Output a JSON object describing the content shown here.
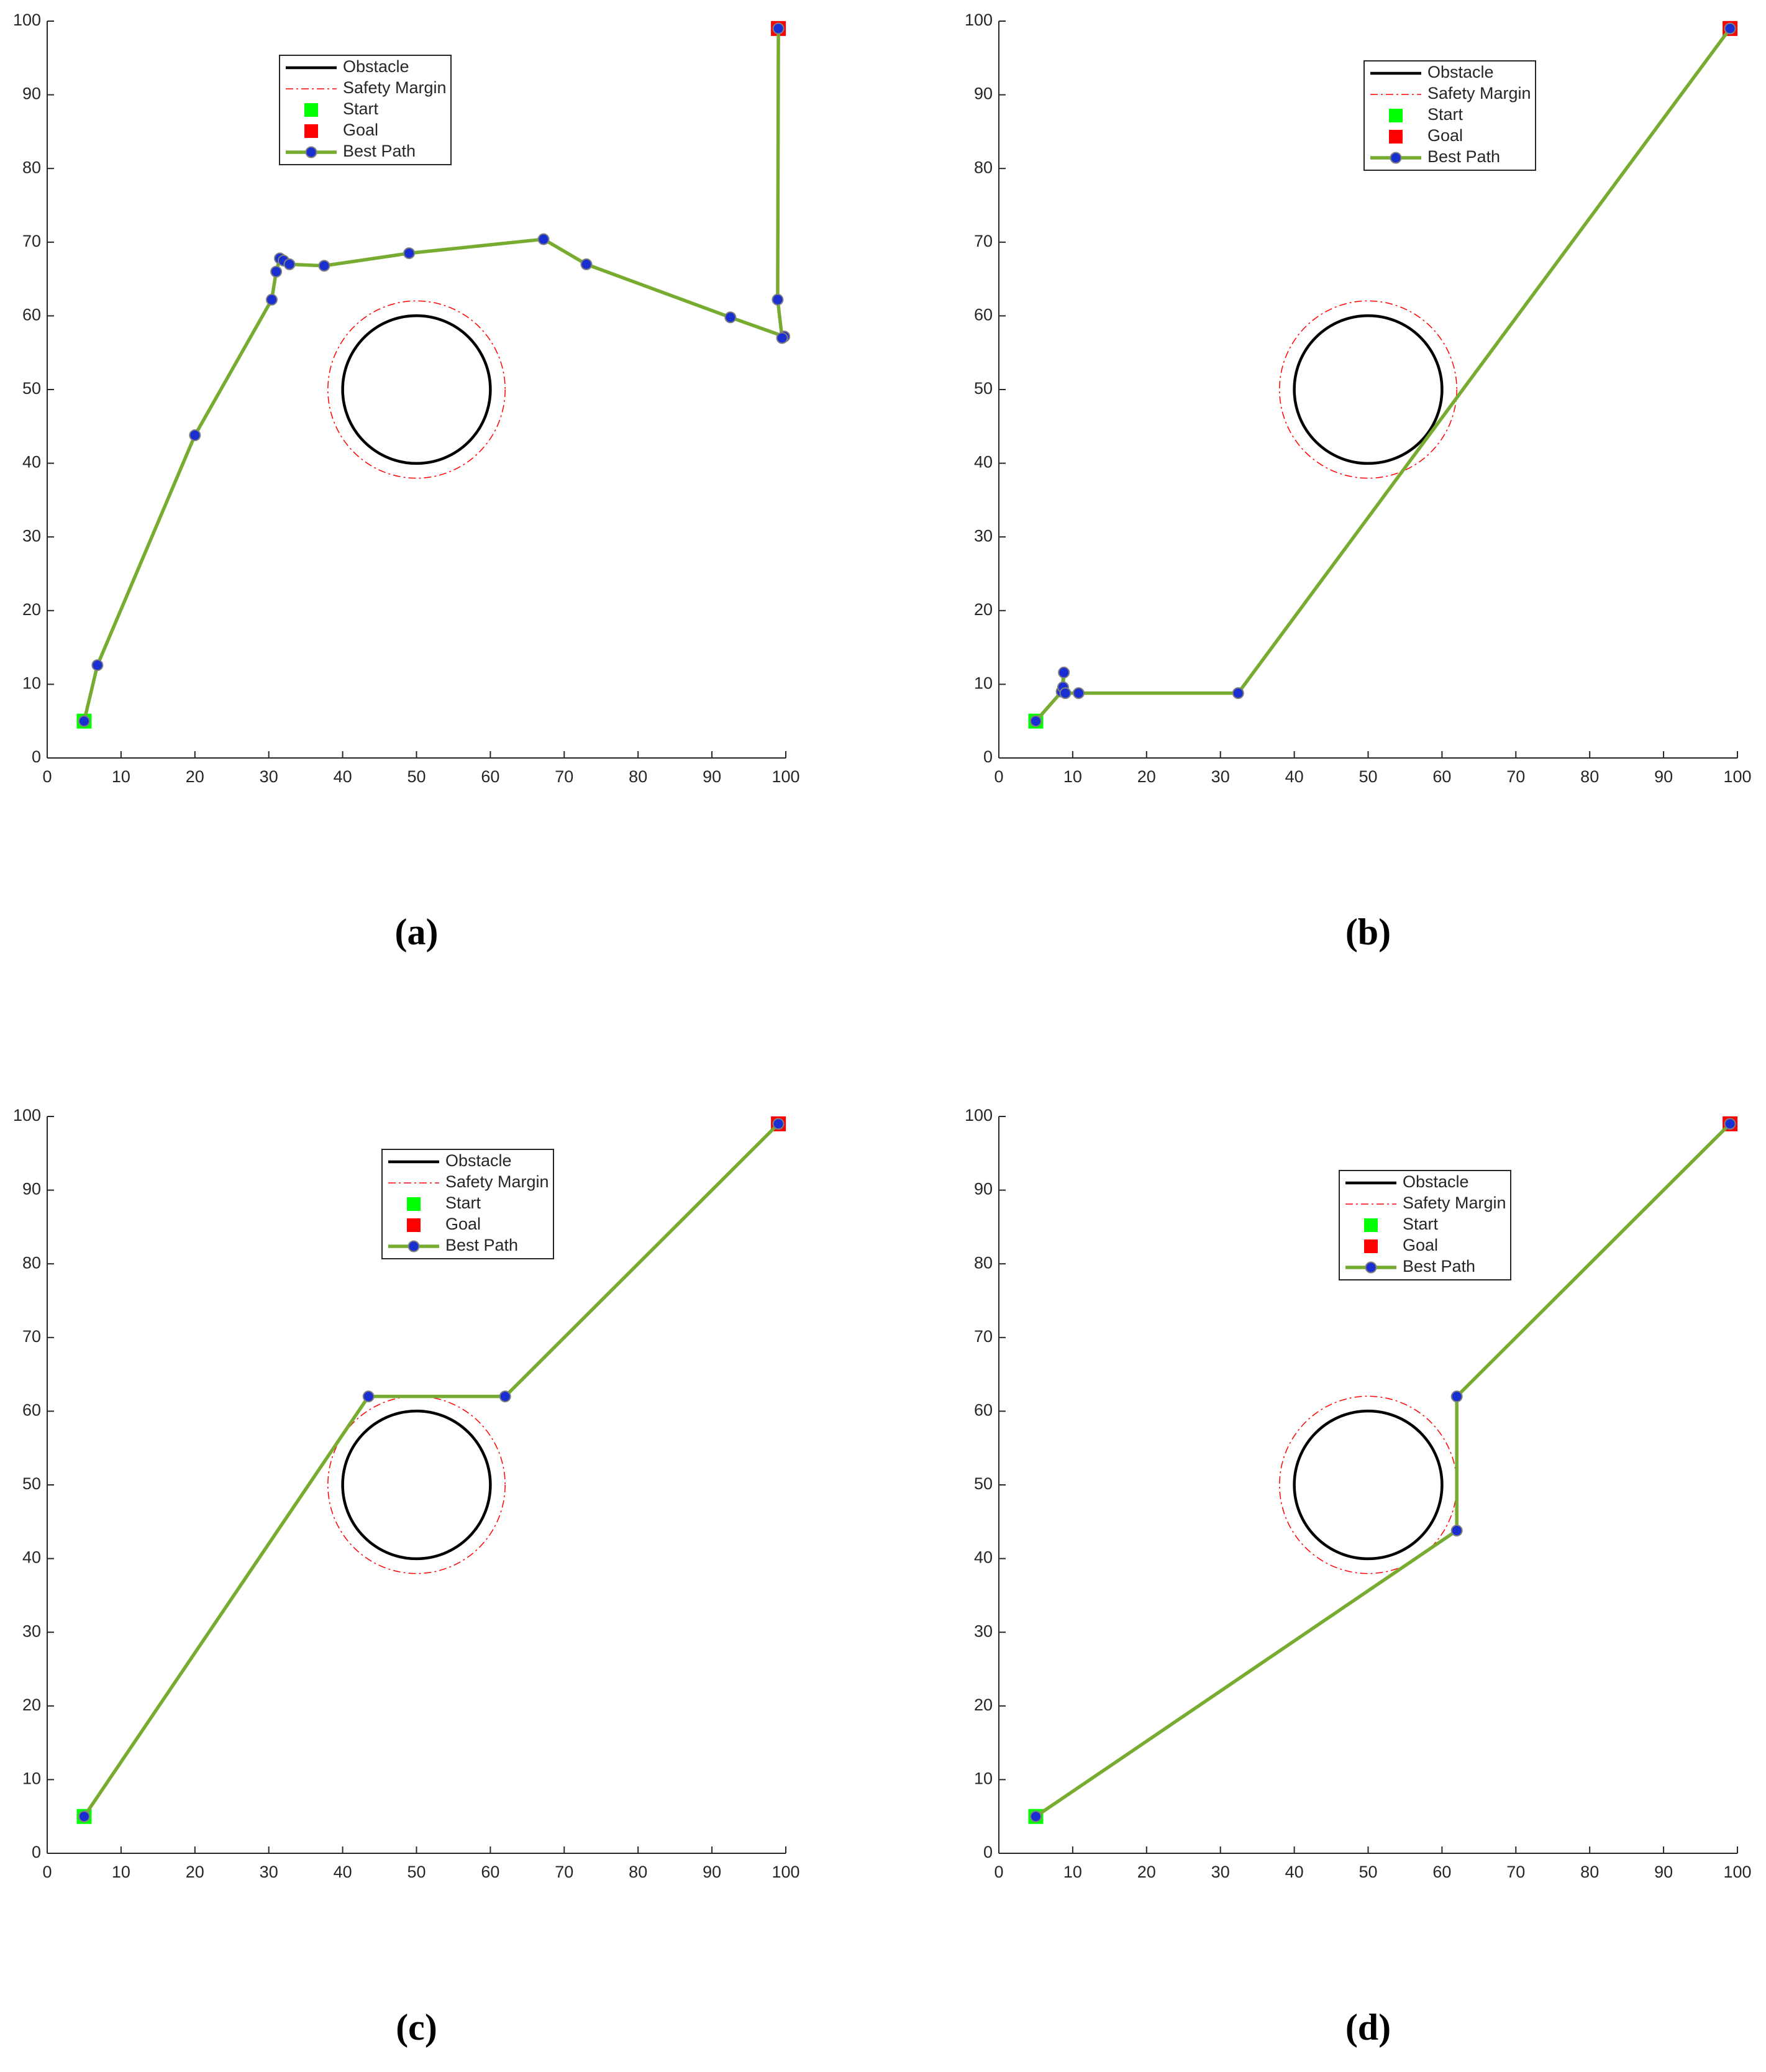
{
  "chart_data": [
    {
      "type": "line",
      "label": "(a)",
      "xlim": [
        0,
        100
      ],
      "ylim": [
        0,
        100
      ],
      "xticks": [
        0,
        10,
        20,
        30,
        40,
        50,
        60,
        70,
        80,
        90,
        100
      ],
      "yticks": [
        0,
        10,
        20,
        30,
        40,
        50,
        60,
        70,
        80,
        90,
        100
      ],
      "series": [
        {
          "name": "Obstacle",
          "color": "#000000",
          "center": [
            50,
            50
          ],
          "radius": 10
        },
        {
          "name": "Safety Margin",
          "color": "#ff0000",
          "center": [
            50,
            50
          ],
          "radius": 12
        },
        {
          "name": "Start",
          "color": "#00ff00",
          "x": [
            5
          ],
          "y": [
            5
          ]
        },
        {
          "name": "Goal",
          "color": "#ff0000",
          "x": [
            99
          ],
          "y": [
            99
          ]
        },
        {
          "name": "Best Path",
          "color": "#77ac30",
          "x": [
            5,
            6.8,
            20,
            30.4,
            31,
            31.5,
            32,
            32.8,
            37.5,
            49,
            67.2,
            73,
            92.5,
            99.8,
            99.5,
            98.9,
            99
          ],
          "y": [
            5,
            12.6,
            43.8,
            62.2,
            66,
            67.8,
            67.5,
            67,
            66.8,
            68.5,
            70.4,
            67,
            59.8,
            57.2,
            57,
            62.2,
            99
          ]
        }
      ]
    },
    {
      "type": "line",
      "label": "(b)",
      "xlim": [
        0,
        100
      ],
      "ylim": [
        0,
        100
      ],
      "xticks": [
        0,
        10,
        20,
        30,
        40,
        50,
        60,
        70,
        80,
        90,
        100
      ],
      "yticks": [
        0,
        10,
        20,
        30,
        40,
        50,
        60,
        70,
        80,
        90,
        100
      ],
      "series": [
        {
          "name": "Obstacle",
          "color": "#000000",
          "center": [
            50,
            50
          ],
          "radius": 10
        },
        {
          "name": "Safety Margin",
          "color": "#ff0000",
          "center": [
            50,
            50
          ],
          "radius": 12
        },
        {
          "name": "Start",
          "color": "#00ff00",
          "x": [
            5
          ],
          "y": [
            5
          ]
        },
        {
          "name": "Goal",
          "color": "#ff0000",
          "x": [
            99
          ],
          "y": [
            99
          ]
        },
        {
          "name": "Best Path",
          "color": "#77ac30",
          "x": [
            5,
            8.5,
            8.8,
            8.7,
            9,
            10.8,
            32.4,
            99
          ],
          "y": [
            5,
            9,
            11.6,
            9.6,
            8.8,
            8.8,
            8.8,
            99
          ]
        }
      ]
    },
    {
      "type": "line",
      "label": "(c)",
      "xlim": [
        0,
        100
      ],
      "ylim": [
        0,
        100
      ],
      "xticks": [
        0,
        10,
        20,
        30,
        40,
        50,
        60,
        70,
        80,
        90,
        100
      ],
      "yticks": [
        0,
        10,
        20,
        30,
        40,
        50,
        60,
        70,
        80,
        90,
        100
      ],
      "series": [
        {
          "name": "Obstacle",
          "color": "#000000",
          "center": [
            50,
            50
          ],
          "radius": 10
        },
        {
          "name": "Safety Margin",
          "color": "#ff0000",
          "center": [
            50,
            50
          ],
          "radius": 12
        },
        {
          "name": "Start",
          "color": "#00ff00",
          "x": [
            5
          ],
          "y": [
            5
          ]
        },
        {
          "name": "Goal",
          "color": "#ff0000",
          "x": [
            99
          ],
          "y": [
            99
          ]
        },
        {
          "name": "Best Path",
          "color": "#77ac30",
          "x": [
            5,
            43.5,
            62,
            99
          ],
          "y": [
            5,
            62,
            62,
            99
          ]
        }
      ]
    },
    {
      "type": "line",
      "label": "(d)",
      "xlim": [
        0,
        100
      ],
      "ylim": [
        0,
        100
      ],
      "xticks": [
        0,
        10,
        20,
        30,
        40,
        50,
        60,
        70,
        80,
        90,
        100
      ],
      "yticks": [
        0,
        10,
        20,
        30,
        40,
        50,
        60,
        70,
        80,
        90,
        100
      ],
      "series": [
        {
          "name": "Obstacle",
          "color": "#000000",
          "center": [
            50,
            50
          ],
          "radius": 10
        },
        {
          "name": "Safety Margin",
          "color": "#ff0000",
          "center": [
            50,
            50
          ],
          "radius": 12
        },
        {
          "name": "Start",
          "color": "#00ff00",
          "x": [
            5
          ],
          "y": [
            5
          ]
        },
        {
          "name": "Goal",
          "color": "#ff0000",
          "x": [
            99
          ],
          "y": [
            99
          ]
        },
        {
          "name": "Best Path",
          "color": "#77ac30",
          "x": [
            5,
            62,
            62,
            99
          ],
          "y": [
            5,
            43.8,
            62,
            99
          ]
        }
      ]
    }
  ]
}
